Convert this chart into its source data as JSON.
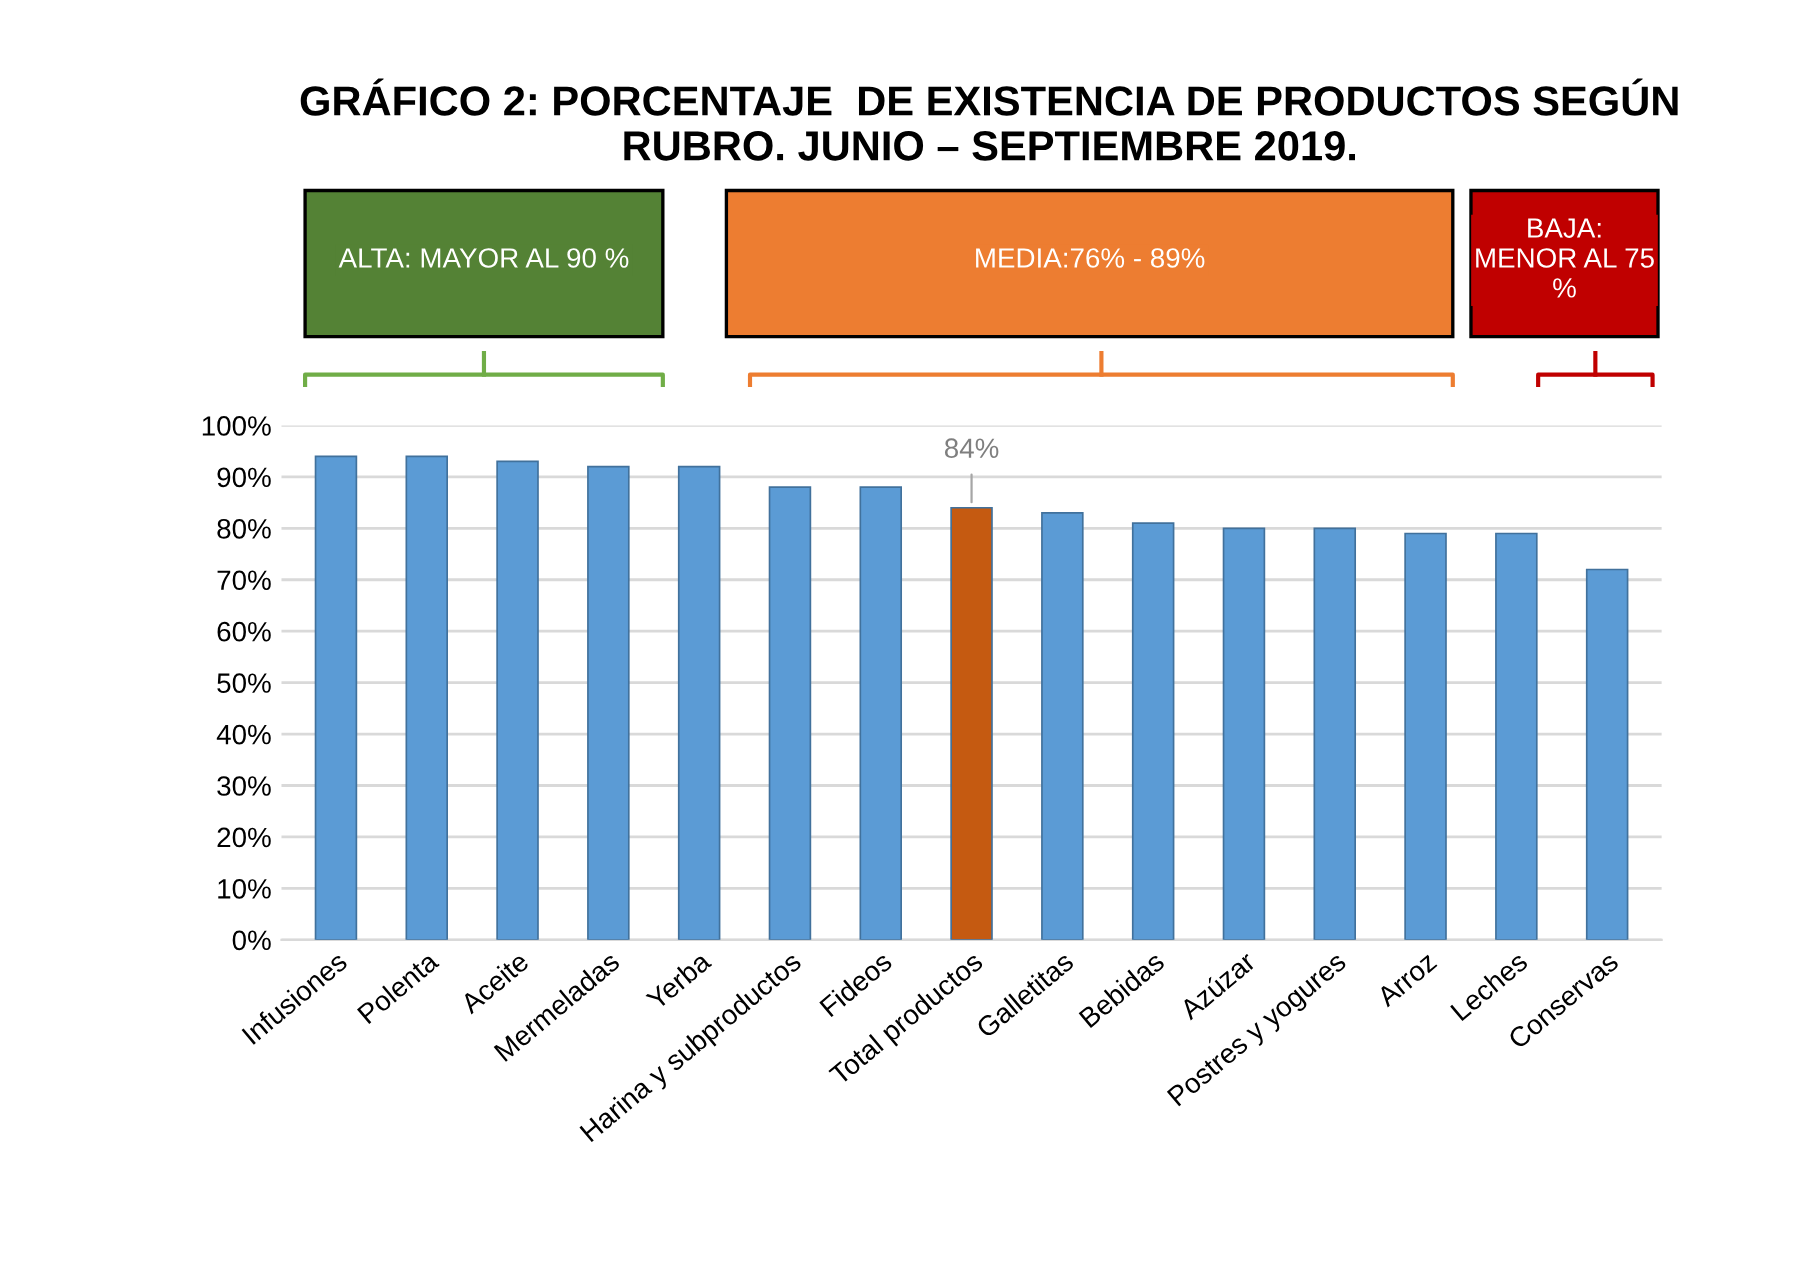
{
  "chart_data": {
    "type": "bar",
    "title": "GRÁFICO 2: PORCENTAJE  DE EXISTENCIA DE PRODUCTOS SEGÚN\nRUBRO. JUNIO – SEPTIEMBRE 2019.",
    "categories": [
      "Infusiones",
      "Polenta",
      "Aceite",
      "Mermeladas",
      "Yerba",
      "Harina y subproductos",
      "Fideos",
      "Total productos",
      "Galletitas",
      "Bebidas",
      "Azúzar",
      "Postres y yogures",
      "Arroz",
      "Leches",
      "Conservas"
    ],
    "values": [
      94,
      94,
      93,
      92,
      92,
      88,
      88,
      84,
      83,
      81,
      80,
      80,
      79,
      79,
      72
    ],
    "colors": [
      "#5b9bd5",
      "#5b9bd5",
      "#5b9bd5",
      "#5b9bd5",
      "#5b9bd5",
      "#5b9bd5",
      "#5b9bd5",
      "#c55a11",
      "#5b9bd5",
      "#5b9bd5",
      "#5b9bd5",
      "#5b9bd5",
      "#5b9bd5",
      "#5b9bd5",
      "#5b9bd5"
    ],
    "value_labels": [
      null,
      null,
      null,
      null,
      null,
      null,
      null,
      "84%",
      null,
      null,
      null,
      null,
      null,
      null,
      null
    ],
    "ylim": [
      0,
      100
    ],
    "yticks": [
      {
        "value": 0,
        "label": "0%"
      },
      {
        "value": 10,
        "label": "10%"
      },
      {
        "value": 20,
        "label": "20%"
      },
      {
        "value": 30,
        "label": "30%"
      },
      {
        "value": 40,
        "label": "40%"
      },
      {
        "value": 50,
        "label": "50%"
      },
      {
        "value": 60,
        "label": "60%"
      },
      {
        "value": 70,
        "label": "70%"
      },
      {
        "value": 80,
        "label": "80%"
      },
      {
        "value": 90,
        "label": "90%"
      },
      {
        "value": 100,
        "label": "100%"
      }
    ],
    "grid": "y",
    "annotations": [
      "ALTA: MAYOR AL 90 %",
      "MEDIA:76% - 89%",
      "BAJA:\nMENOR AL 75\n%"
    ]
  }
}
